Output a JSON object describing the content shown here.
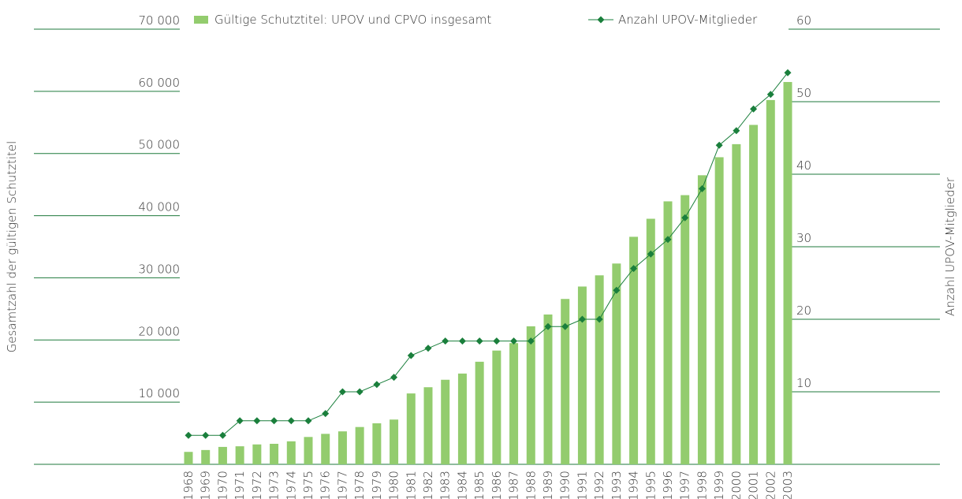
{
  "chart_data": {
    "type": "bar_line",
    "y_label": "Gesamtzahl der gültigen Schutztitel",
    "y2_label": "Anzahl UPOV-Mitglieder",
    "categories": [
      "1968",
      "1969",
      "1970",
      "1971",
      "1972",
      "1973",
      "1974",
      "1975",
      "1976",
      "1977",
      "1978",
      "1979",
      "1980",
      "1981",
      "1982",
      "1983",
      "1984",
      "1985",
      "1986",
      "1987",
      "1988",
      "1989",
      "1990",
      "1991",
      "1992",
      "1993",
      "1994",
      "1995",
      "1996",
      "1997",
      "1998",
      "1999",
      "2000",
      "2001",
      "2002",
      "2003"
    ],
    "series": [
      {
        "name": "Gültige Schutztitel: UPOV und CPVO insgesamt",
        "type": "bar",
        "color": "#93cc6e",
        "values": [
          2000,
          2300,
          2800,
          2900,
          3200,
          3300,
          3700,
          4400,
          4900,
          5300,
          6000,
          6600,
          7200,
          11400,
          12400,
          13600,
          14600,
          16500,
          18300,
          19500,
          22200,
          24100,
          26600,
          28600,
          30400,
          32300,
          36600,
          39500,
          42300,
          43300,
          46500,
          49400,
          51500,
          54600,
          58600,
          61500
        ]
      },
      {
        "name": "Anzahl UPOV-Mitglieder",
        "type": "line",
        "axis": "y2",
        "color": "#1a7f3c",
        "values": [
          4,
          4,
          4,
          6,
          6,
          6,
          6,
          6,
          7,
          10,
          10,
          11,
          12,
          15,
          16,
          17,
          17,
          17,
          17,
          17,
          17,
          19,
          19,
          20,
          20,
          24,
          27,
          29,
          31,
          34,
          38,
          44,
          46,
          49,
          51,
          54
        ]
      }
    ],
    "ylim": [
      0,
      70000
    ],
    "yticks": [
      {
        "value": 10000,
        "label": "10 000"
      },
      {
        "value": 20000,
        "label": "20 000"
      },
      {
        "value": 30000,
        "label": "30 000"
      },
      {
        "value": 40000,
        "label": "40 000"
      },
      {
        "value": 50000,
        "label": "50 000"
      },
      {
        "value": 60000,
        "label": "60 000"
      },
      {
        "value": 70000,
        "label": "70 000"
      }
    ],
    "y2lim": [
      0,
      60
    ],
    "y2ticks": [
      10,
      20,
      30,
      40,
      50,
      60
    ],
    "grid": true
  }
}
